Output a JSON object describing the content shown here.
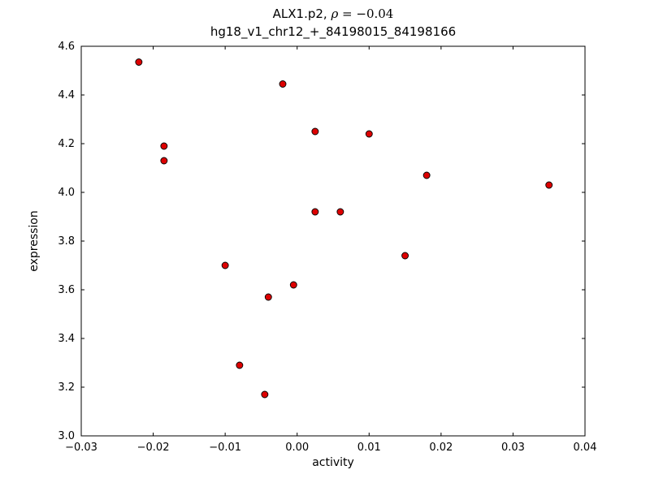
{
  "figure": {
    "title": {
      "prefix": "ALX1.p2, ",
      "rho": "ρ",
      "suffix": " = −0.04"
    },
    "subtitle": "hg18_v1_chr12_+_84198015_84198166",
    "xlabel": "activity",
    "ylabel": "expression"
  },
  "chart_data": {
    "type": "scatter",
    "title": "ALX1.p2, ρ = −0.04",
    "subtitle": "hg18_v1_chr12_+_84198015_84198166",
    "xlabel": "activity",
    "ylabel": "expression",
    "xlim": [
      -0.03,
      0.04
    ],
    "ylim": [
      3.0,
      4.6
    ],
    "xticks": [
      -0.03,
      -0.02,
      -0.01,
      0.0,
      0.01,
      0.02,
      0.03,
      0.04
    ],
    "xtick_labels": [
      "−0.03",
      "−0.02",
      "−0.01",
      "0.00",
      "0.01",
      "0.02",
      "0.03",
      "0.04"
    ],
    "yticks": [
      3.0,
      3.2,
      3.4,
      3.6,
      3.8,
      4.0,
      4.2,
      4.4,
      4.6
    ],
    "ytick_labels": [
      "3.0",
      "3.2",
      "3.4",
      "3.6",
      "3.8",
      "4.0",
      "4.2",
      "4.4",
      "4.6"
    ],
    "grid": false,
    "legend": null,
    "marker": {
      "shape": "circle",
      "fill": "#dd0000",
      "edge": "#000000",
      "radius": 4
    },
    "points": [
      [
        -0.022,
        4.535
      ],
      [
        -0.0185,
        4.19
      ],
      [
        -0.0185,
        4.13
      ],
      [
        -0.002,
        4.445
      ],
      [
        0.0025,
        4.25
      ],
      [
        0.01,
        4.24
      ],
      [
        0.018,
        4.07
      ],
      [
        0.035,
        4.03
      ],
      [
        0.0025,
        3.92
      ],
      [
        0.006,
        3.92
      ],
      [
        -0.01,
        3.7
      ],
      [
        0.015,
        3.74
      ],
      [
        -0.0005,
        3.62
      ],
      [
        -0.004,
        3.57
      ],
      [
        -0.008,
        3.29
      ],
      [
        -0.0045,
        3.17
      ]
    ]
  }
}
